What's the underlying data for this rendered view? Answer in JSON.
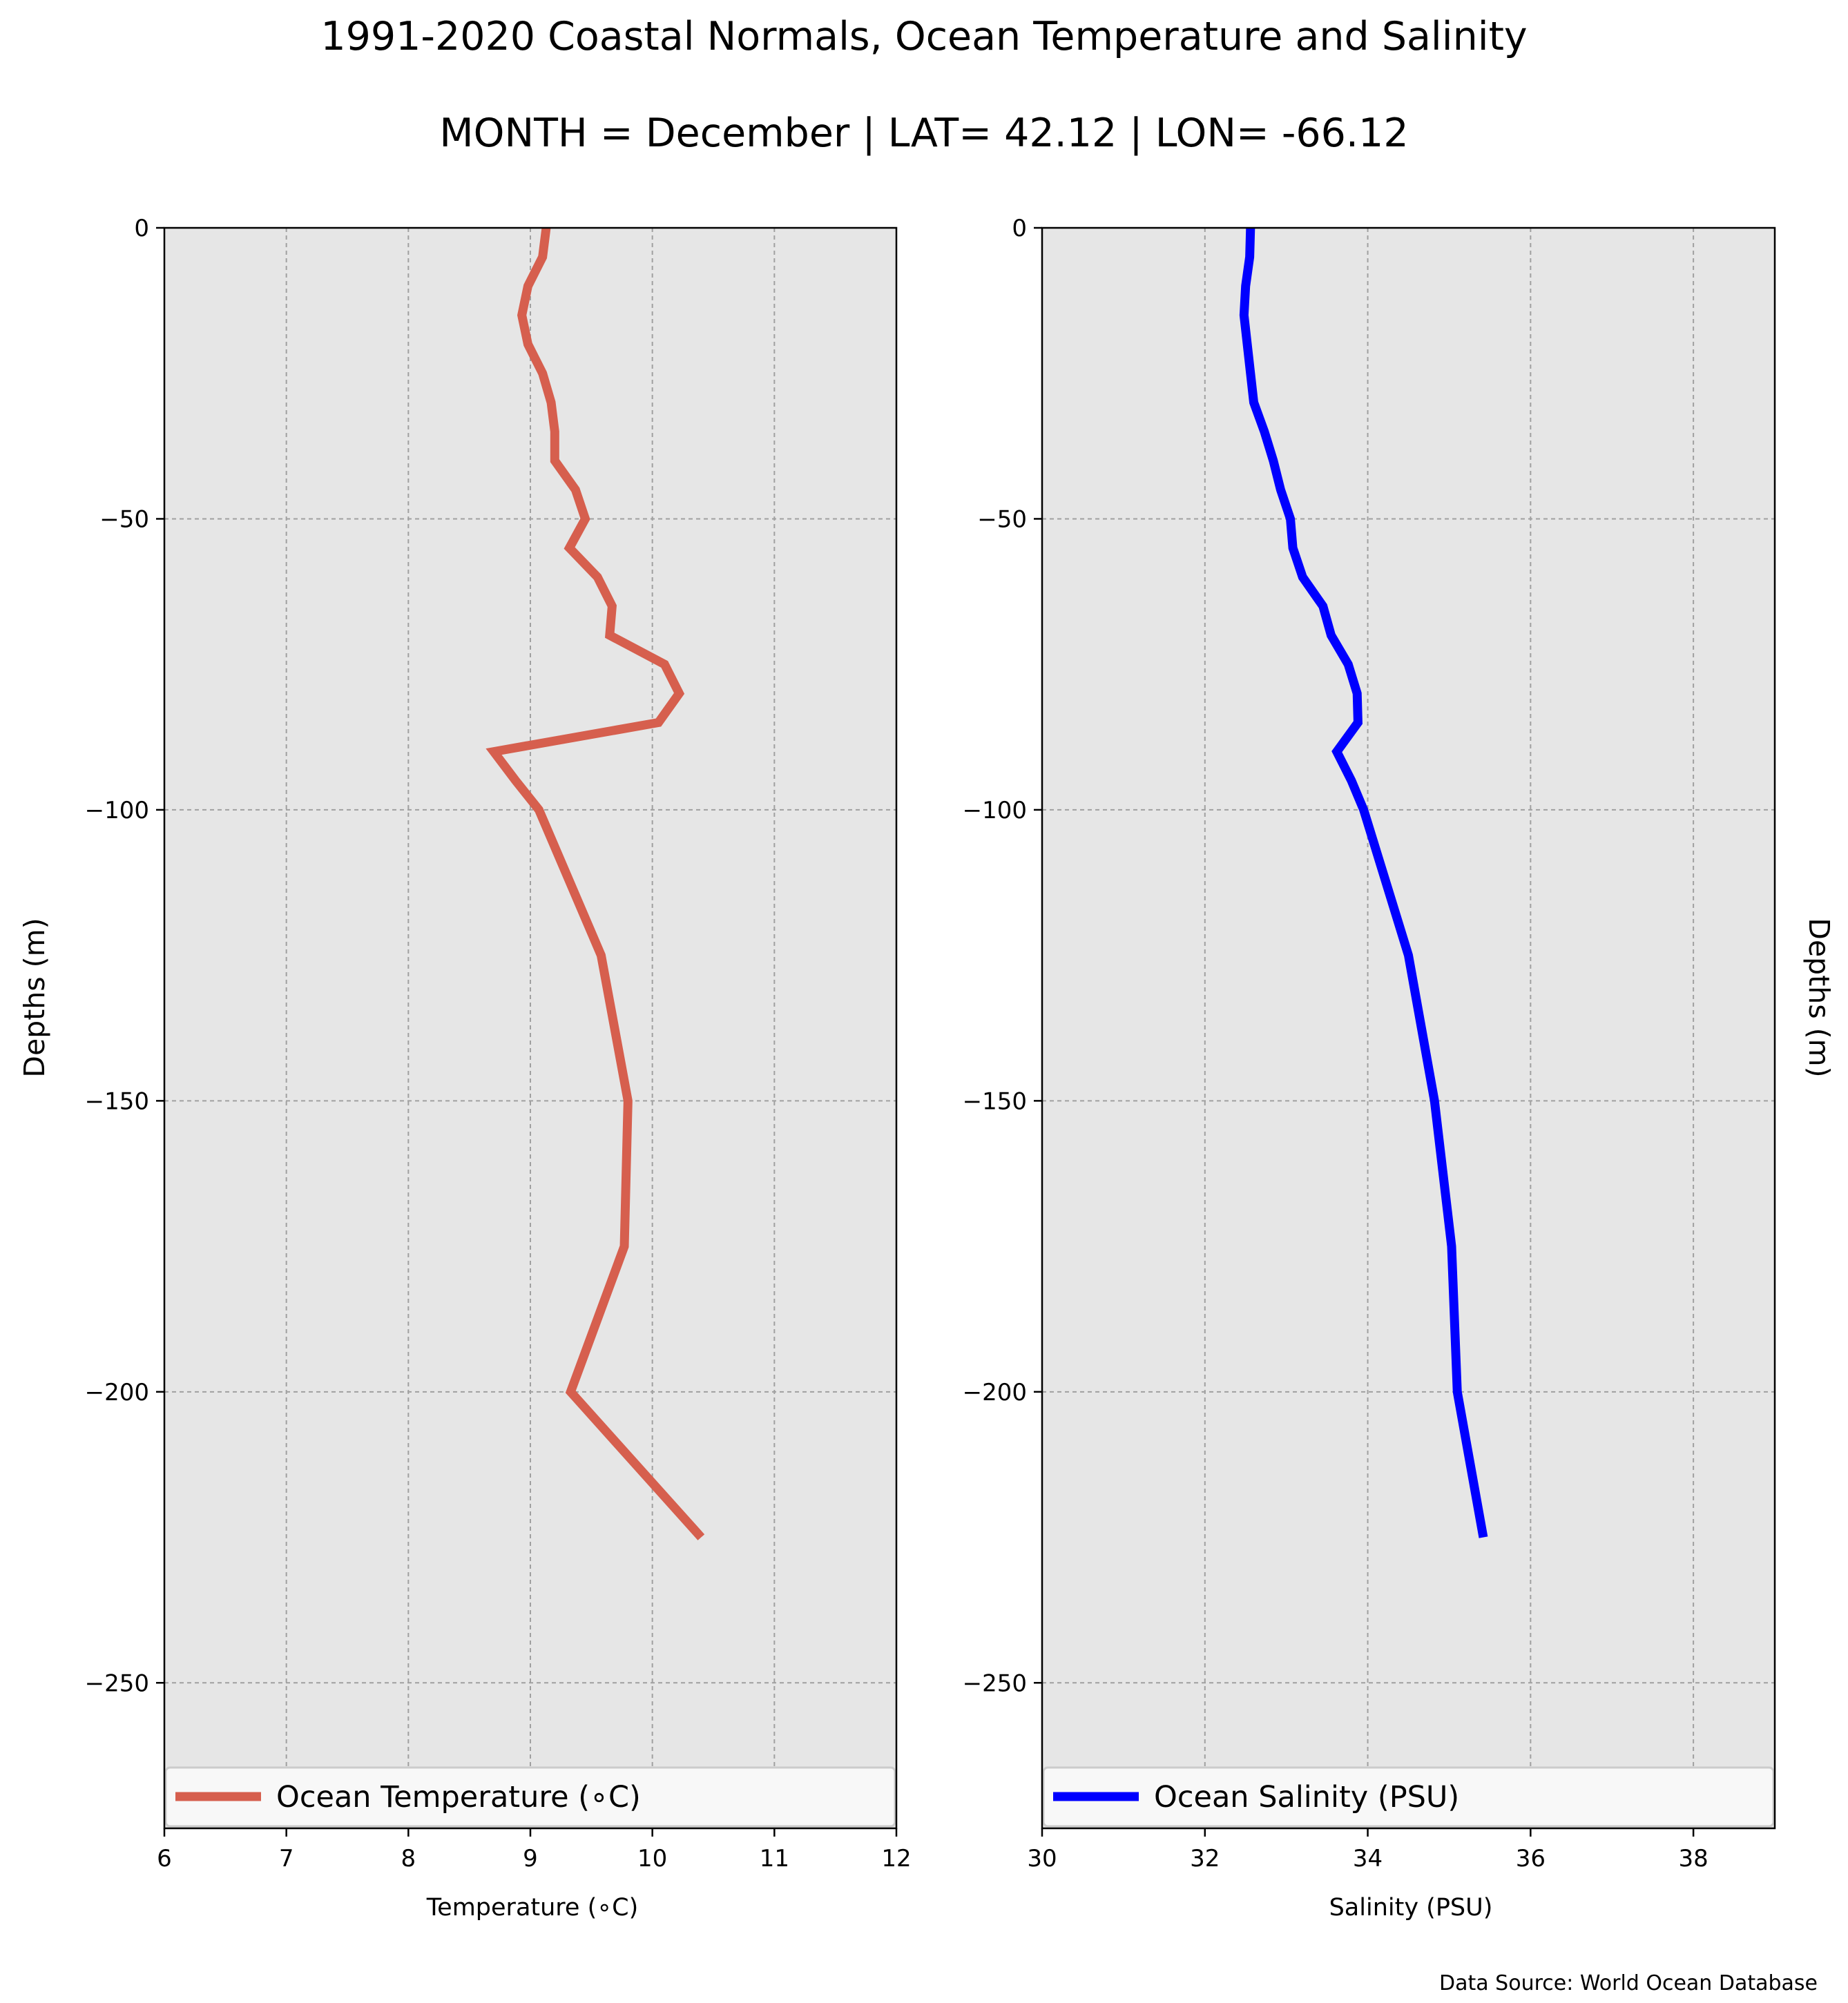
{
  "title": "1991-2020 Coastal Normals, Ocean Temperature and Salinity",
  "subtitle": "MONTH = December | LAT= 42.12 | LON= -66.12",
  "source_note": "Data Source: World Ocean Database",
  "colors": {
    "background": "#ffffff",
    "panel_bg": "#e6e6e6",
    "grid": "#a0a0a0",
    "temperature_line": "#d65f4e",
    "salinity_line": "#0000ff",
    "legend_bg": "#f8f8f8"
  },
  "chart_data": [
    {
      "type": "line",
      "xlabel": "Temperature ($^\\circ$C)",
      "xlabel_display": "Temperature (∘C)",
      "ylabel": "Depths (m)",
      "xlim": [
        6,
        12
      ],
      "ylim": [
        -275,
        0
      ],
      "xticks": [
        6,
        7,
        8,
        9,
        10,
        11,
        12
      ],
      "yticks": [
        0,
        -50,
        -100,
        -150,
        -200,
        -250
      ],
      "grid": true,
      "legend_position": "bottom",
      "series": [
        {
          "name": "Ocean Temperature (∘C)",
          "color": "#d65f4e",
          "points": [
            {
              "x": 9.13,
              "y": 0
            },
            {
              "x": 9.1,
              "y": -5
            },
            {
              "x": 8.98,
              "y": -10
            },
            {
              "x": 8.93,
              "y": -15
            },
            {
              "x": 8.98,
              "y": -20
            },
            {
              "x": 9.1,
              "y": -25
            },
            {
              "x": 9.17,
              "y": -30
            },
            {
              "x": 9.2,
              "y": -35
            },
            {
              "x": 9.2,
              "y": -40
            },
            {
              "x": 9.37,
              "y": -45
            },
            {
              "x": 9.45,
              "y": -50
            },
            {
              "x": 9.32,
              "y": -55
            },
            {
              "x": 9.55,
              "y": -60
            },
            {
              "x": 9.67,
              "y": -65
            },
            {
              "x": 9.65,
              "y": -70
            },
            {
              "x": 10.1,
              "y": -75
            },
            {
              "x": 10.22,
              "y": -80
            },
            {
              "x": 10.05,
              "y": -85
            },
            {
              "x": 8.7,
              "y": -90
            },
            {
              "x": 8.88,
              "y": -95
            },
            {
              "x": 9.07,
              "y": -100
            },
            {
              "x": 9.58,
              "y": -125
            },
            {
              "x": 9.8,
              "y": -150
            },
            {
              "x": 9.77,
              "y": -175
            },
            {
              "x": 9.33,
              "y": -200
            },
            {
              "x": 10.4,
              "y": -225
            }
          ]
        }
      ]
    },
    {
      "type": "line",
      "xlabel": "Salinity (PSU)",
      "ylabel": "Depths (m)",
      "xlim": [
        30,
        39
      ],
      "ylim": [
        -275,
        0
      ],
      "xticks": [
        30,
        32,
        34,
        36,
        38
      ],
      "yticks": [
        0,
        -50,
        -100,
        -150,
        -200,
        -250
      ],
      "grid": true,
      "legend_position": "bottom",
      "series": [
        {
          "name": "Ocean Salinity (PSU)",
          "color": "#0000ff",
          "points": [
            {
              "x": 32.56,
              "y": 0
            },
            {
              "x": 32.55,
              "y": -5
            },
            {
              "x": 32.5,
              "y": -10
            },
            {
              "x": 32.48,
              "y": -15
            },
            {
              "x": 32.52,
              "y": -20
            },
            {
              "x": 32.56,
              "y": -25
            },
            {
              "x": 32.6,
              "y": -30
            },
            {
              "x": 32.73,
              "y": -35
            },
            {
              "x": 32.84,
              "y": -40
            },
            {
              "x": 32.93,
              "y": -45
            },
            {
              "x": 33.05,
              "y": -50
            },
            {
              "x": 33.08,
              "y": -55
            },
            {
              "x": 33.2,
              "y": -60
            },
            {
              "x": 33.45,
              "y": -65
            },
            {
              "x": 33.55,
              "y": -70
            },
            {
              "x": 33.76,
              "y": -75
            },
            {
              "x": 33.87,
              "y": -80
            },
            {
              "x": 33.88,
              "y": -85
            },
            {
              "x": 33.62,
              "y": -90
            },
            {
              "x": 33.8,
              "y": -95
            },
            {
              "x": 33.95,
              "y": -100
            },
            {
              "x": 34.5,
              "y": -125
            },
            {
              "x": 34.82,
              "y": -150
            },
            {
              "x": 35.03,
              "y": -175
            },
            {
              "x": 35.1,
              "y": -200
            },
            {
              "x": 35.42,
              "y": -225
            }
          ]
        }
      ]
    }
  ]
}
